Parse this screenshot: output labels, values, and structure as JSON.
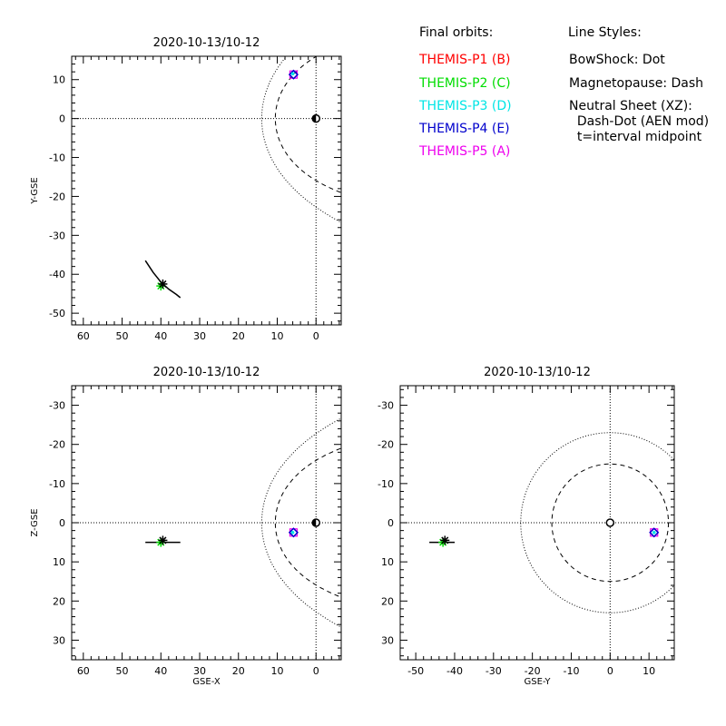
{
  "legend": {
    "orbits_title": "Final orbits:",
    "probes": [
      {
        "label": "THEMIS-P1 (B)",
        "color": "#ff0000"
      },
      {
        "label": "THEMIS-P2 (C)",
        "color": "#00dd00"
      },
      {
        "label": "THEMIS-P3 (D)",
        "color": "#00e5e5"
      },
      {
        "label": "THEMIS-P4 (E)",
        "color": "#0000cc"
      },
      {
        "label": "THEMIS-P5 (A)",
        "color": "#ee00ee"
      }
    ],
    "styles_title": "Line Styles:",
    "styles": [
      "BowShock: Dot",
      "Magnetopause: Dash",
      "Neutral Sheet (XZ):",
      "  Dash-Dot (AEN mod)",
      "  t=interval midpoint"
    ]
  },
  "chart_data": [
    {
      "type": "line",
      "title": "2020-10-13/10-12",
      "xlabel": "",
      "ylabel": "Y-GSE",
      "xlim": [
        63,
        -6.5
      ],
      "ylim": [
        16,
        -53
      ],
      "xticks": [
        60,
        50,
        40,
        30,
        20,
        10,
        0
      ],
      "yticks": [
        -50,
        -40,
        -30,
        -20,
        -10,
        0,
        10
      ],
      "orbit_track": {
        "x": [
          44,
          42,
          40,
          38,
          36,
          35
        ],
        "y": [
          -36.5,
          -39.5,
          -42,
          -43.8,
          -45.2,
          -46
        ]
      },
      "probe_positions": {
        "P1": [
          39.5,
          -42.5
        ],
        "P2": [
          40,
          -43
        ],
        "P3": [
          6,
          11.5
        ],
        "P4": [
          5.8,
          11.3
        ],
        "P5": [
          5.8,
          11.3
        ]
      },
      "earth": [
        0,
        0
      ]
    },
    {
      "type": "line",
      "title": "2020-10-13/10-12",
      "xlabel": "GSE-X",
      "ylabel": "Z-GSE",
      "xlim": [
        63,
        -6.5
      ],
      "ylim": [
        -35,
        35
      ],
      "xticks": [
        60,
        50,
        40,
        30,
        20,
        10,
        0
      ],
      "yticks": [
        -30,
        -20,
        -10,
        0,
        10,
        20,
        30
      ],
      "orbit_track": {
        "x": [
          44,
          40,
          35
        ],
        "y": [
          5,
          5,
          5
        ]
      },
      "probe_positions": {
        "P1": [
          39.5,
          4.5
        ],
        "P2": [
          40,
          5
        ],
        "P3": [
          6,
          2.5
        ],
        "P4": [
          5.8,
          2.5
        ],
        "P5": [
          5.8,
          2.5
        ]
      },
      "earth": [
        0,
        0
      ]
    },
    {
      "type": "line",
      "title": "2020-10-13/10-12",
      "xlabel": "GSE-Y",
      "ylabel": "",
      "xlim": [
        -54,
        16.5
      ],
      "ylim": [
        -35,
        35
      ],
      "xticks": [
        -50,
        -40,
        -30,
        -20,
        -10,
        0,
        10
      ],
      "yticks": [
        -30,
        -20,
        -10,
        0,
        10,
        20,
        30
      ],
      "orbit_track": {
        "x": [
          -46.5,
          -43,
          -40
        ],
        "y": [
          5,
          5,
          5
        ]
      },
      "probe_positions": {
        "P1": [
          -42.5,
          4.5
        ],
        "P2": [
          -43,
          5
        ],
        "P3": [
          11.3,
          2.5
        ],
        "P4": [
          11.3,
          2.5
        ],
        "P5": [
          11.3,
          2.5
        ]
      },
      "earth": [
        0,
        0
      ]
    }
  ]
}
